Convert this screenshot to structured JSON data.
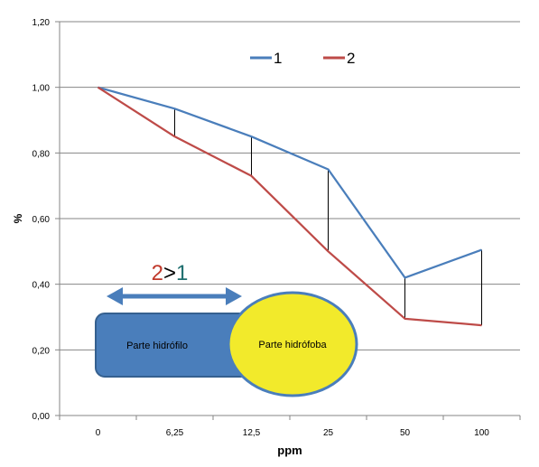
{
  "chart_data": {
    "type": "line",
    "title": "",
    "xlabel": "ppm",
    "ylabel": "%",
    "categories": [
      "0",
      "6,25",
      "12,5",
      "25",
      "50",
      "100"
    ],
    "ylim": [
      0,
      1.2
    ],
    "yticks": [
      "0,00",
      "0,20",
      "0,40",
      "0,60",
      "0,80",
      "1,00",
      "1,20"
    ],
    "grid": "horizontal",
    "legend_position": "top",
    "series": [
      {
        "name": "1",
        "color": "#4a7ebb",
        "values": [
          1.0,
          0.935,
          0.85,
          0.75,
          0.42,
          0.505
        ]
      },
      {
        "name": "2",
        "color": "#be4b48",
        "values": [
          1.0,
          0.85,
          0.73,
          0.5,
          0.295,
          0.275
        ]
      }
    ],
    "difference_lines": true,
    "annotation": {
      "comparison": {
        "left": "2",
        "op": ">",
        "right": "1",
        "left_color": "#c0392b",
        "op_color": "#000000",
        "right_color": "#1f6f6f"
      },
      "arrow_color": "#4a7ebb",
      "hydrophilic_label": "Parte hidrófilo",
      "hydrophilic_color": "#4a7ebb",
      "hydrophobic_label": "Parte hidrófoba",
      "hydrophobic_color": "#f2ea2b"
    }
  }
}
